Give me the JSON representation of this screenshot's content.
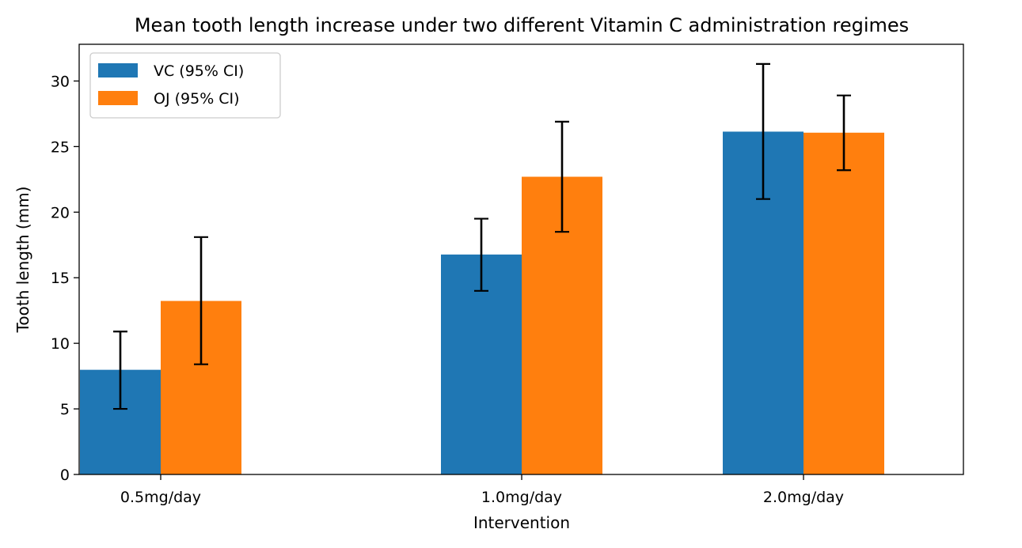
{
  "chart_data": {
    "type": "bar",
    "title": "Mean tooth length increase under two different Vitamin C administration regimes",
    "xlabel": "Intervention",
    "ylabel": "Tooth length (mm)",
    "categories": [
      "0.5mg/day",
      "1.0mg/day",
      "2.0mg/day"
    ],
    "ylim": [
      0,
      32.8
    ],
    "yticks": [
      0,
      5,
      10,
      15,
      20,
      25,
      30
    ],
    "grid": false,
    "legend_position": "top-left",
    "series": [
      {
        "name": "VC (95% CI)",
        "color": "#1f77b4",
        "values": [
          7.98,
          16.77,
          26.14
        ],
        "ci_low": [
          5.0,
          14.0,
          21.0
        ],
        "ci_high": [
          10.9,
          19.5,
          31.3
        ]
      },
      {
        "name": "OJ (95% CI)",
        "color": "#ff7f0e",
        "values": [
          13.23,
          22.7,
          26.06
        ],
        "ci_low": [
          8.4,
          18.5,
          23.2
        ],
        "ci_high": [
          18.1,
          26.9,
          28.9
        ]
      }
    ]
  }
}
